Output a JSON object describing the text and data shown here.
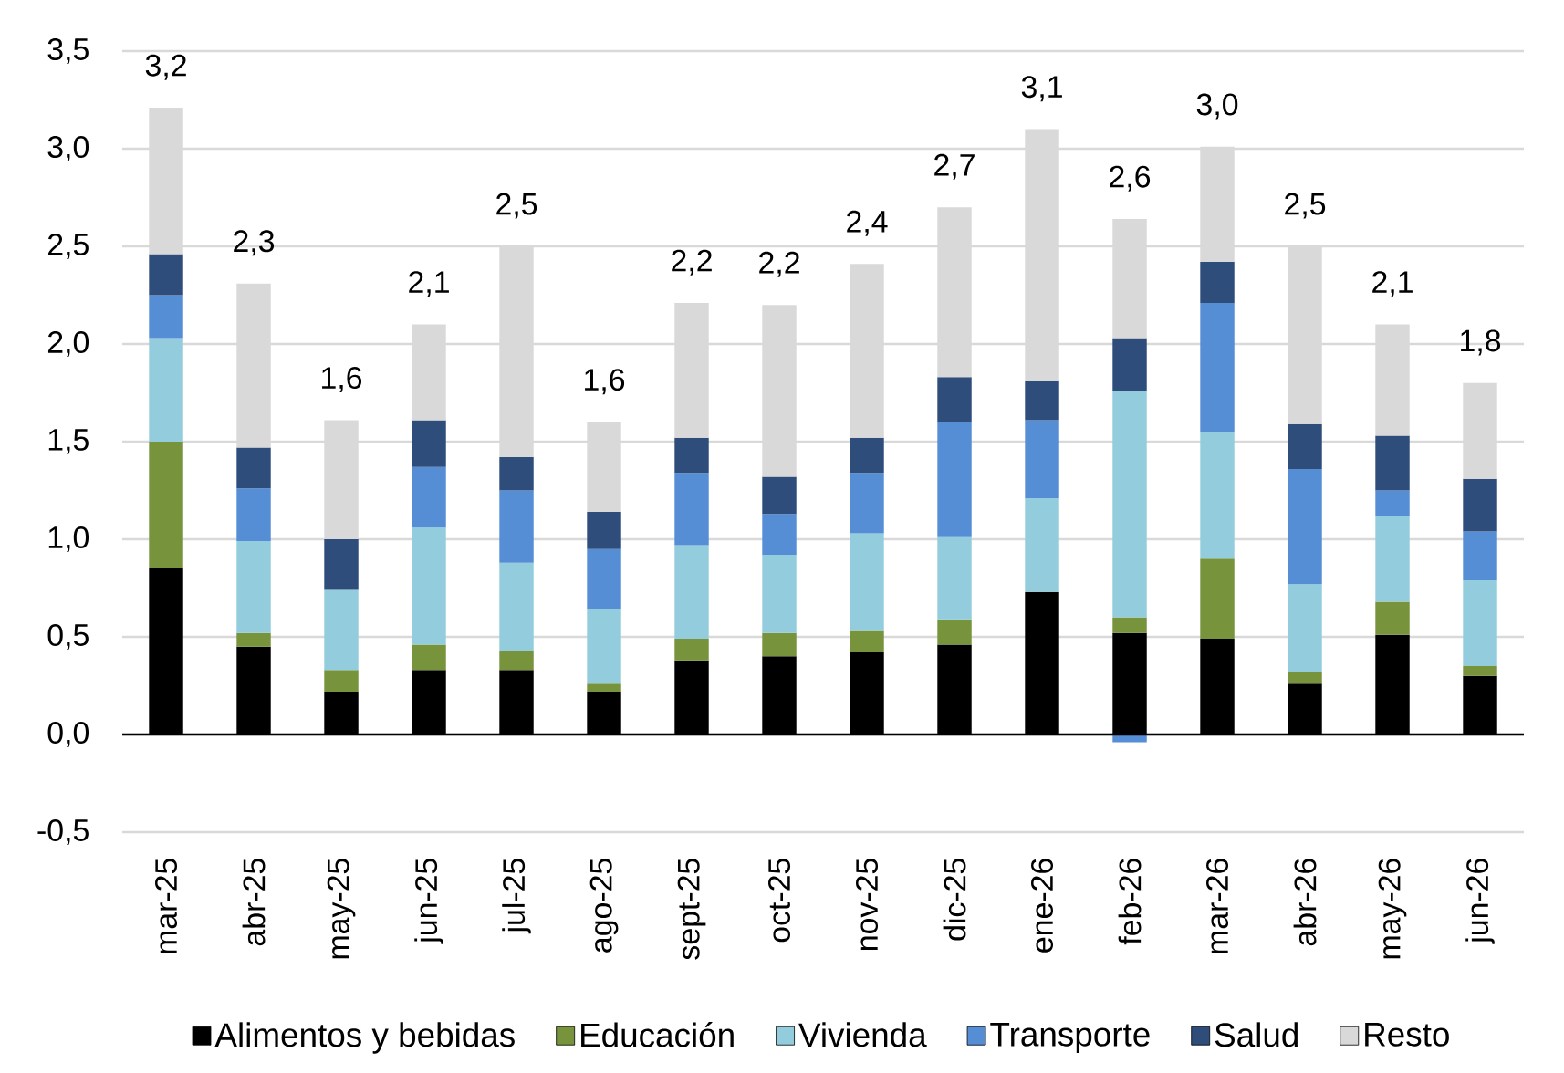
{
  "chart_data": {
    "type": "bar",
    "stacked": true,
    "categories": [
      "mar-25",
      "abr-25",
      "may-25",
      "jun-25",
      "jul-25",
      "ago-25",
      "sept-25",
      "oct-25",
      "nov-25",
      "dic-25",
      "ene-26",
      "feb-26",
      "mar-26",
      "abr-26",
      "may-26",
      "jun-26"
    ],
    "series": [
      {
        "name": "Alimentos y bebidas",
        "color": "#000000",
        "values": [
          0.85,
          0.45,
          0.22,
          0.33,
          0.33,
          0.22,
          0.38,
          0.4,
          0.42,
          0.46,
          0.73,
          0.52,
          0.49,
          0.26,
          0.51,
          0.3
        ]
      },
      {
        "name": "Educación",
        "color": "#77933C",
        "values": [
          0.65,
          0.07,
          0.11,
          0.13,
          0.1,
          0.04,
          0.11,
          0.12,
          0.11,
          0.13,
          0.0,
          0.08,
          0.41,
          0.06,
          0.17,
          0.05
        ]
      },
      {
        "name": "Vivienda",
        "color": "#93CDDD",
        "values": [
          0.53,
          0.47,
          0.41,
          0.6,
          0.45,
          0.38,
          0.48,
          0.4,
          0.5,
          0.42,
          0.48,
          1.16,
          0.65,
          0.45,
          0.44,
          0.44
        ]
      },
      {
        "name": "Transporte",
        "color": "#558ED5",
        "values": [
          0.22,
          0.27,
          0.0,
          0.31,
          0.37,
          0.31,
          0.37,
          0.21,
          0.31,
          0.59,
          0.4,
          -0.04,
          0.66,
          0.59,
          0.13,
          0.25
        ]
      },
      {
        "name": "Salud",
        "color": "#2E4D7B",
        "values": [
          0.21,
          0.21,
          0.26,
          0.24,
          0.17,
          0.19,
          0.18,
          0.19,
          0.18,
          0.23,
          0.2,
          0.27,
          0.21,
          0.23,
          0.28,
          0.27
        ]
      },
      {
        "name": "Resto",
        "color": "#D9D9D9",
        "values": [
          0.75,
          0.84,
          0.61,
          0.49,
          1.08,
          0.46,
          0.69,
          0.88,
          0.89,
          0.87,
          1.29,
          0.61,
          0.59,
          0.91,
          0.57,
          0.49
        ]
      }
    ],
    "totals": [
      "3,2",
      "2,3",
      "1,6",
      "2,1",
      "2,5",
      "1,6",
      "2,2",
      "2,2",
      "2,4",
      "2,7",
      "3,1",
      "2,6",
      "3,0",
      "2,5",
      "2,1",
      "1,8"
    ],
    "ylim": [
      -0.5,
      3.5
    ],
    "yticks": [
      {
        "value": -0.5,
        "label": "-0,5"
      },
      {
        "value": 0,
        "label": "0,0"
      },
      {
        "value": 0.5,
        "label": "0,5"
      },
      {
        "value": 1,
        "label": "1,0"
      },
      {
        "value": 1.5,
        "label": "1,5"
      },
      {
        "value": 2,
        "label": "2,0"
      },
      {
        "value": 2.5,
        "label": "2,5"
      },
      {
        "value": 3,
        "label": "3,0"
      },
      {
        "value": 3.5,
        "label": "3,5"
      }
    ],
    "grid": "y",
    "legend": "bottom"
  }
}
